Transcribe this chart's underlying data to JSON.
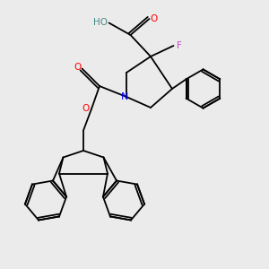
{
  "bg_color": "#ebebeb",
  "atom_colors": {
    "O": "#ff0000",
    "N": "#0000ff",
    "F": "#cc44cc",
    "C": "#000000",
    "H": "#448888"
  },
  "bond_lw": 1.3,
  "font_size": 7.5
}
